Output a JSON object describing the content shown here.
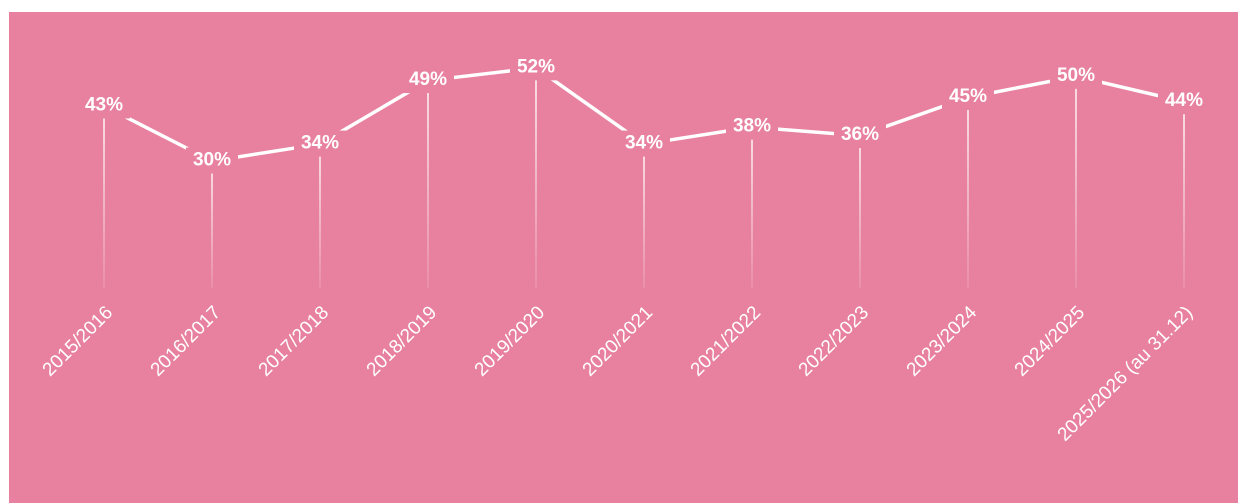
{
  "chart_data": {
    "type": "line",
    "categories": [
      "2015/2016",
      "2016/2017",
      "2017/2018",
      "2018/2019",
      "2019/2020",
      "2020/2021",
      "2021/2022",
      "2022/2023",
      "2023/2024",
      "2024/2025",
      "2025/2026 (au 31.12)"
    ],
    "values": [
      43,
      30,
      34,
      49,
      52,
      34,
      38,
      36,
      45,
      50,
      44
    ],
    "value_labels": [
      "43%",
      "30%",
      "34%",
      "49%",
      "52%",
      "34%",
      "38%",
      "36%",
      "45%",
      "50%",
      "44%"
    ],
    "color": "#ffffff",
    "ylim": [
      0,
      60
    ]
  }
}
